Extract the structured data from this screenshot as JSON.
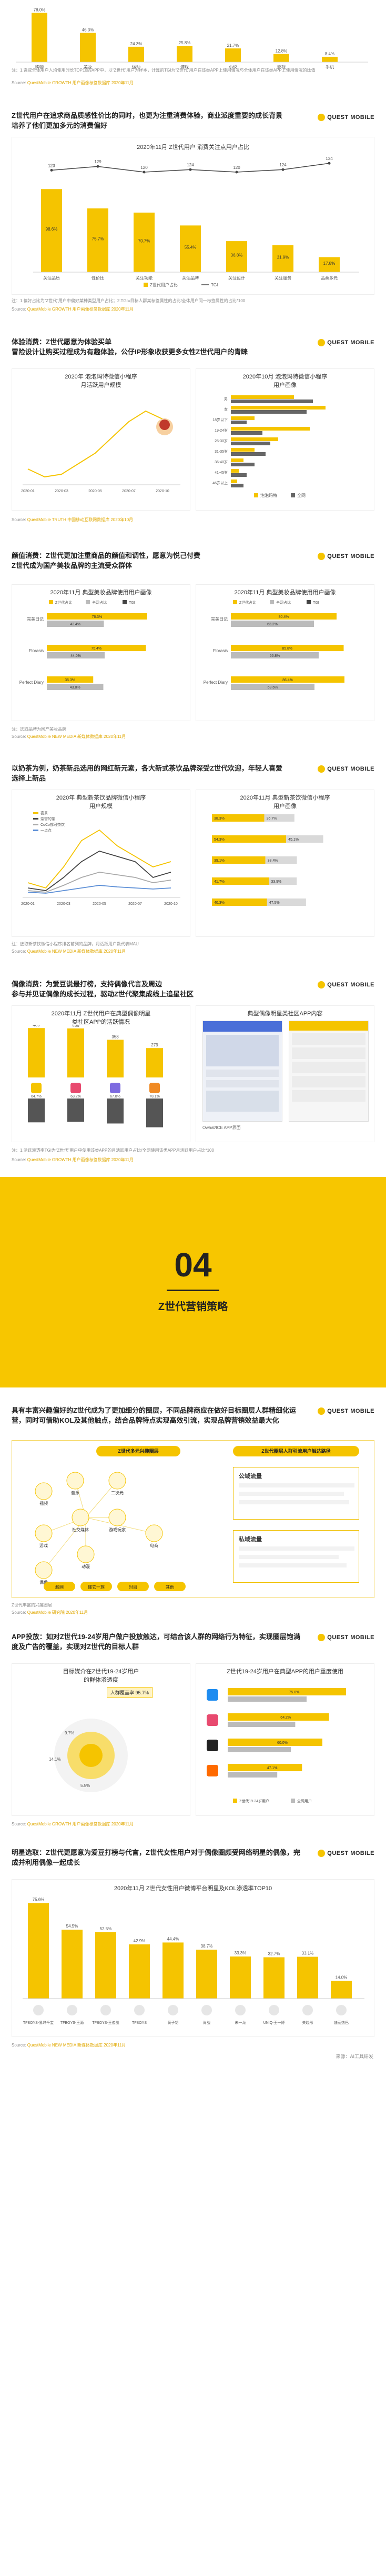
{
  "brand": "QUEST MOBILE",
  "top": {
    "bar_values": [
      "78.0%",
      "46.3%",
      "24.3%",
      "25.8%",
      "21.7%",
      "12.8%",
      "8.4%"
    ],
    "categories": [
      "购物",
      "美妆",
      "运动",
      "游戏",
      "小说",
      "影视",
      "手机"
    ],
    "note": "注：1.选取全体用户人均使用时长TOP10的APP中，以“Z世代”用户为样本，计算的TGI为“Z世代”用户在该类APP上使用情况与全体用户在该类APP上使用情况的比值",
    "source_label": "Source:",
    "source": "QuestMobile GROWTH 用户画像标签数据库 2020年11月"
  },
  "s1": {
    "heading": "Z世代用户在追求商品质感性价比的同时，也更为注重消费体验，商业派度重要的成长背景培养了他们更加多元的消费偏好",
    "chart_title": "2020年11月 Z世代用户 消费关注点用户占比",
    "line_values": [
      "123",
      "129",
      "120",
      "124",
      "120",
      "124"
    ],
    "line_last": "134",
    "bar_labels": [
      "98.6%",
      "75.7%",
      "70.7%",
      "55.4%",
      "36.8%",
      "31.9%",
      "17.8%"
    ],
    "categories": [
      "关注品质",
      "性价比",
      "关注功能",
      "关注品牌",
      "关注设计",
      "关注服务",
      "品类多元"
    ],
    "legend": [
      "Z世代用户占比",
      "TGI"
    ],
    "note": "注：1.偏好占比为“Z世代”用户中偏好某种类型用户占比；2.TGI=目标人群某标签属性的占比/全体用户同一标签属性的占比*100",
    "source": "QuestMobile GROWTH 用户画像标签数据库 2020年11月"
  },
  "s2": {
    "heading": "体验消费：Z世代愿意为体验买单\n冒险设计让购买过程成为有趣体验，公仔IP形象收获更多女性Z世代用户的青睐",
    "chart1_title": "2020年 泡泡玛特微信小程序\n月活跃用户规模",
    "chart1_x": [
      "2020-01",
      "2020-03",
      "2020-05",
      "2020-07",
      "2020-10"
    ],
    "chart2_title": "2020年10月 泡泡玛特微信小程序\n用户画像",
    "chart2_legend": [
      "泡泡玛特",
      "全网"
    ],
    "chart2_rows": [
      "男",
      "女",
      "18岁以下",
      "19-24岁",
      "25-30岁",
      "31-35岁",
      "36-40岁",
      "41-45岁",
      "46岁以上"
    ],
    "source": "QuestMobile TRUTH 中国移动互联网数据库 2020年10月"
  },
  "s3": {
    "heading": "颜值消费：Z世代更加注重商品的颜值和调性，愿意为悦己付费\nZ世代成为国产美妆品牌的主流受众群体",
    "chart1_title": "2020年11月 典型美妆品牌使用用户画像",
    "chart2_title": "2020年11月 典型美妆品牌使用用户画像",
    "legend1": [
      "Z世代占比",
      "全网占比",
      "TGI"
    ],
    "brands": [
      "完美日记",
      "Florasis",
      "Perfect Diary"
    ],
    "left_values": [
      [
        "76.3%",
        "43.4%"
      ],
      [
        "75.4%",
        "44.0%"
      ],
      [
        "35.3%",
        "43.0%"
      ]
    ],
    "right_values": [
      [
        "80.4%",
        "63.2%"
      ],
      [
        "85.8%",
        "66.8%"
      ],
      [
        "86.4%",
        "63.6%"
      ]
    ],
    "note": "注：选取品牌为国产美妆品牌",
    "source": "QuestMobile NEW MEDIA 新媒体数据库 2020年11月"
  },
  "s4": {
    "heading": "以奶茶为例，奶茶新品选用的网红新元素，各大新式茶饮品牌深受Z世代欢迎，年轻人喜爱选择上新品",
    "chart1_title": "2020年 典型新茶饮品牌微信小程序\n用户规模",
    "legend1": [
      "喜茶",
      "奈雪的茶",
      "CoCo都可茶饮",
      "一点点"
    ],
    "chart1_x": [
      "2020-01",
      "2020-03",
      "2020-05",
      "2020-07",
      "2020-10"
    ],
    "chart2_title": "2020年11月 典型新茶饮微信小程序\n用户画像",
    "chart2_rows": [
      "用户占比",
      "",
      "",
      "19-24岁",
      "25-30岁",
      "31-35岁",
      "36岁以上"
    ],
    "chart2_values": [
      [
        "38.3%",
        "36.7%"
      ],
      [
        "54.3%",
        "45.1%"
      ],
      [
        "39.1%",
        "38.4%"
      ],
      [
        "41.7%",
        "33.9%"
      ],
      [
        "40.3%",
        "47.5%"
      ]
    ],
    "note": "注：选取新茶饮微信小程序排名前列的品牌，月活跃用户数代表MAU",
    "source": "QuestMobile NEW MEDIA 新媒体数据库 2020年11月"
  },
  "s5": {
    "heading": "偶像消费：为爱豆说最打榜，支持偶像代言及周边\n参与并见证偶像的成长过程，驱动Z世代聚集成线上追星社区",
    "chart1_title": "2020年11月 Z世代用户在典型偶像明星\n类社区APP的活跃情况",
    "chart1_values": [
      "469",
      "466",
      "358",
      "279"
    ],
    "chart1_pct": [
      "64.7%",
      "63.2%",
      "67.8%",
      "78.1%"
    ],
    "chart2_title": "典型偶像明星类社区APP内容",
    "chart2_label": "Owhat/ICE APP界面",
    "note": "注：1.活跃渗透率TGI为“Z世代”用户中使用该类APP的月活跃用户占比/全网使用该类APP月活跃用户占比*100",
    "source": "QuestMobile GROWTH 用户画像标签数据库 2020年11月"
  },
  "banner": {
    "number": "04",
    "title": "Z世代营销策略"
  },
  "s6": {
    "heading": "具有丰富兴趣偏好的Z世代成为了更加细分的圈层，不同品牌商应在做好目标圈层人群精细化运营，同时可借助KOL及其他触点，结合品牌特点实现高效引流，实现品牌营销效益最大化",
    "hub_label": "Z世代多元兴趣圈层",
    "topics": [
      "视频",
      "音乐",
      "游戏",
      "二次元",
      "游戏玩家",
      "动漫",
      "偶像",
      "社交媒体",
      "电商"
    ],
    "bottom_pills": [
      "触网",
      "懂它一族",
      "时尚",
      "其他"
    ],
    "right_title": "Z世代圈层人群引流用户触达路径",
    "right_boxes": [
      "公域流量",
      "私域流量"
    ],
    "note": "Z世代丰富的兴趣圈层",
    "source": "QuestMobile 研究院 2020年11月"
  },
  "s7": {
    "heading": "APP投放：如对Z世代19-24岁用户做户投放触达，可结合该人群的网络行为特征，实现圈层饱满度及广告的覆盖，实现对Z世代的目标人群",
    "chart1_title": "目标媒介在Z世代19-24岁用户\n的群体渗透度",
    "chart1_tag": "人群覆盖率 95.7%",
    "chart1_pie": [
      "9.7%",
      "14.1%",
      "5.5%"
    ],
    "chart2_title": "Z世代19-24岁用户在典型APP的用户重度使用",
    "chart2_values": [
      "75.0%",
      "64.2%",
      "60.0%",
      "47.1%"
    ],
    "legend2": [
      "Z世代19-24岁用户",
      "全网用户"
    ],
    "source": "QuestMobile GROWTH 用户画像标签数据库 2020年11月"
  },
  "s8": {
    "heading": "明星选取：Z世代更愿意为爱豆打榜与代言，Z世代女性用户对于偶像圈颇受网络明星的偶像，完成并利用偶像一起成长",
    "chart_title": "2020年11月 Z世代女性用户微博平台明星及KOL渗透率TOP10",
    "bar_labels": [
      "75.6%",
      "54.5%",
      "52.5%",
      "42.9%",
      "44.4%",
      "38.7%",
      "33.3%",
      "32.7%",
      "33.1%",
      "14.0%"
    ],
    "names": [
      "TFBOYS-易烊千玺",
      "TFBOYS-王源",
      "TFBOYS-王俊凯",
      "TFBOYS",
      "黄子韬",
      "肖战",
      "朱一龙",
      "UNIQ-王一博",
      "关晓彤",
      "迪丽热巴"
    ],
    "source": "QuestMobile NEW MEDIA 新媒体数据库 2020年11月",
    "footer": "来源：AI工具研发"
  }
}
